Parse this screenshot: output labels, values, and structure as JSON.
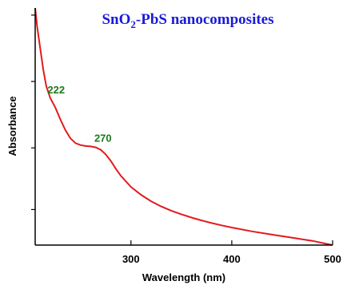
{
  "chart_data": {
    "type": "line",
    "title": {
      "part1": "SnO",
      "subscript": "2",
      "part2": "-PbS nanocomposites",
      "color": "#1a1adc"
    },
    "xlabel": "Wavelength (nm)",
    "ylabel": "Absorbance",
    "xlim": [
      205,
      500
    ],
    "ylim": [
      0,
      1
    ],
    "x_ticks": [
      300,
      400,
      500
    ],
    "x_tick_labels": [
      "300",
      "400",
      "500"
    ],
    "y_ticks_unlabeled": [
      0.15,
      0.41,
      0.69,
      0.97
    ],
    "grid": false,
    "legend": "none",
    "series": [
      {
        "color": "#e31a1c",
        "x": [
          205,
          207,
          210,
          213,
          216,
          220,
          225,
          230,
          235,
          240,
          245,
          250,
          255,
          260,
          265,
          270,
          275,
          280,
          285,
          290,
          300,
          310,
          320,
          330,
          340,
          350,
          360,
          370,
          380,
          390,
          400,
          420,
          440,
          460,
          480,
          500
        ],
        "y": [
          1.0,
          0.92,
          0.83,
          0.74,
          0.67,
          0.62,
          0.58,
          0.53,
          0.485,
          0.45,
          0.43,
          0.422,
          0.418,
          0.416,
          0.412,
          0.402,
          0.382,
          0.355,
          0.322,
          0.292,
          0.245,
          0.212,
          0.185,
          0.163,
          0.145,
          0.13,
          0.116,
          0.104,
          0.093,
          0.083,
          0.074,
          0.058,
          0.044,
          0.031,
          0.018,
          0.0
        ]
      }
    ],
    "annotations": [
      {
        "text": "222",
        "x": 222,
        "y": 0.62,
        "color": "#1a7a1a"
      },
      {
        "text": "270",
        "x": 270,
        "y": 0.402,
        "color": "#1a7a1a"
      }
    ]
  }
}
